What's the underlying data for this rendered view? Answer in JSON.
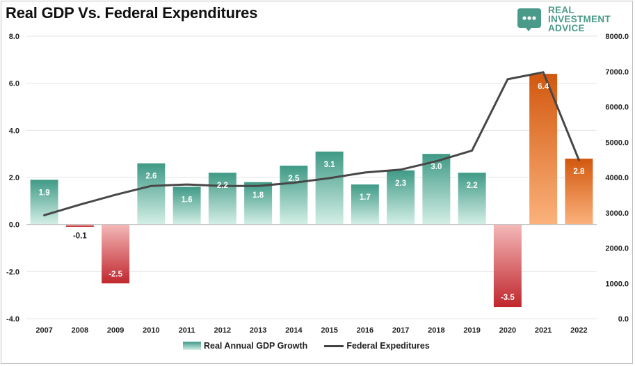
{
  "title": "Real GDP Vs. Federal Expenditures",
  "logo": {
    "line1": "REAL",
    "line2": "INVESTMENT",
    "line3": "ADVICE",
    "icon": "chat-bubble-icon",
    "color": "#4a9a8a"
  },
  "chart_data": {
    "type": "bar",
    "title": "Real GDP Vs. Federal Expenditures",
    "categories": [
      "2007",
      "2008",
      "2009",
      "2010",
      "2011",
      "2012",
      "2013",
      "2014",
      "2015",
      "2016",
      "2017",
      "2018",
      "2019",
      "2020",
      "2021",
      "2022"
    ],
    "series": [
      {
        "name": "Real Annual GDP Growth",
        "type": "bar",
        "axis": "left",
        "values": [
          1.9,
          -0.1,
          -2.5,
          2.6,
          1.6,
          2.2,
          1.8,
          2.5,
          3.1,
          1.7,
          2.3,
          3.0,
          2.2,
          -3.5,
          6.4,
          2.8
        ],
        "labels": [
          "1.9",
          "-0.1",
          "-2.5",
          "2.6",
          "1.6",
          "2.2",
          "1.8",
          "2.5",
          "3.1",
          "1.7",
          "2.3",
          "3.0",
          "2.2",
          "-3.5",
          "6.4",
          "2.8"
        ]
      },
      {
        "name": "Federal Expeditures",
        "type": "line",
        "axis": "right",
        "values": [
          2930,
          3230,
          3510,
          3760,
          3800,
          3760,
          3760,
          3850,
          3980,
          4140,
          4220,
          4460,
          4760,
          6780,
          6980,
          4490
        ]
      }
    ],
    "ylim_left": [
      -4.0,
      8.0
    ],
    "ylim_right": [
      0,
      8000
    ],
    "yticks_left": [
      "-4.0",
      "-2.0",
      "0.0",
      "2.0",
      "4.0",
      "6.0",
      "8.0"
    ],
    "yticks_right": [
      "0.0",
      "1000.0",
      "2000.0",
      "3000.0",
      "4000.0",
      "5000.0",
      "6000.0",
      "7000.0",
      "8000.0"
    ],
    "grid": true,
    "legend_position": "bottom-center",
    "colors": {
      "positive_top": "#3f9a86",
      "positive_bottom": "#d4efe6",
      "negative_top": "#f4b8b8",
      "negative_bottom": "#c0272d",
      "highlight_top": "#d2580e",
      "highlight_bottom": "#fbb27c",
      "line": "#474747"
    },
    "highlight_years": [
      "2021",
      "2022"
    ]
  }
}
